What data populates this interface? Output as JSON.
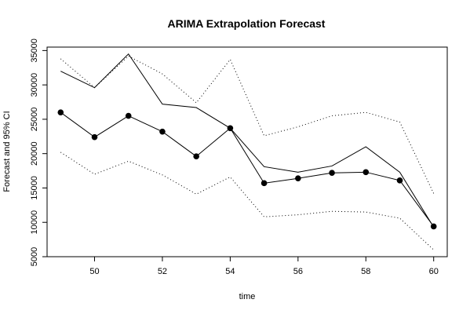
{
  "chart_data": {
    "type": "line",
    "title": "ARIMA Extrapolation Forecast",
    "xlabel": "time",
    "ylabel": "Forecast and 95% CI",
    "xlim": [
      48.6,
      60.4
    ],
    "ylim": [
      5000,
      35500
    ],
    "x_ticks": [
      50,
      52,
      54,
      56,
      58,
      60
    ],
    "y_ticks": [
      5000,
      10000,
      15000,
      20000,
      25000,
      30000,
      35000
    ],
    "grid": false,
    "legend": "none",
    "series": [
      {
        "role": "actual",
        "style": "solid",
        "x": [
          49,
          50,
          51,
          52,
          53,
          54,
          55,
          56,
          57,
          58,
          59,
          60
        ],
        "values": [
          32000,
          29600,
          34500,
          27200,
          26700,
          23700,
          18100,
          17300,
          18200,
          21000,
          17300,
          9300
        ]
      },
      {
        "role": "forecast",
        "style": "solid-with-points",
        "x": [
          49,
          50,
          51,
          52,
          53,
          54,
          55,
          56,
          57,
          58,
          59,
          60
        ],
        "values": [
          26000,
          22400,
          25500,
          23200,
          19600,
          23700,
          15700,
          16400,
          17200,
          17300,
          16100,
          9400
        ]
      },
      {
        "role": "upper-95",
        "style": "dotted",
        "x": [
          49,
          50,
          51,
          52,
          53,
          54,
          55,
          56,
          57,
          58,
          59,
          60
        ],
        "values": [
          33800,
          29600,
          34200,
          31600,
          27400,
          33700,
          22600,
          23900,
          25500,
          26000,
          24600,
          14200
        ]
      },
      {
        "role": "lower-95",
        "style": "dotted",
        "x": [
          49,
          50,
          51,
          52,
          53,
          54,
          55,
          56,
          57,
          58,
          59,
          60
        ],
        "values": [
          20200,
          17000,
          18900,
          16900,
          14100,
          16600,
          10800,
          11100,
          11600,
          11500,
          10600,
          6000
        ]
      }
    ]
  }
}
